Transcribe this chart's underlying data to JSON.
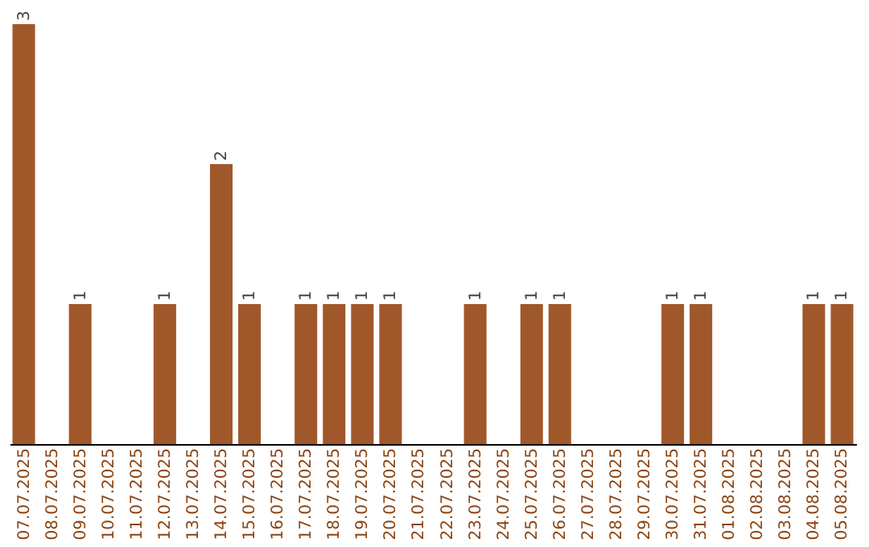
{
  "chart_data": {
    "type": "bar",
    "categories": [
      "07.07.2025",
      "08.07.2025",
      "09.07.2025",
      "10.07.2025",
      "11.07.2025",
      "12.07.2025",
      "13.07.2025",
      "14.07.2025",
      "15.07.2025",
      "16.07.2025",
      "17.07.2025",
      "18.07.2025",
      "19.07.2025",
      "20.07.2025",
      "21.07.2025",
      "22.07.2025",
      "23.07.2025",
      "24.07.2025",
      "25.07.2025",
      "26.07.2025",
      "27.07.2025",
      "28.07.2025",
      "29.07.2025",
      "30.07.2025",
      "31.07.2025",
      "01.08.2025",
      "02.08.2025",
      "03.08.2025",
      "04.08.2025",
      "05.08.2025"
    ],
    "values": [
      3,
      0,
      1,
      0,
      0,
      1,
      0,
      2,
      1,
      0,
      1,
      1,
      1,
      1,
      0,
      0,
      1,
      0,
      1,
      1,
      0,
      0,
      0,
      1,
      1,
      0,
      0,
      0,
      1,
      1
    ],
    "value_labels": [
      "3",
      null,
      "1",
      null,
      null,
      "1",
      null,
      "2",
      "1",
      null,
      "1",
      "1",
      "1",
      "1",
      null,
      null,
      "1",
      null,
      "1",
      "1",
      null,
      null,
      null,
      "1",
      "1",
      null,
      null,
      null,
      "1",
      "1"
    ],
    "color": "#a0582a",
    "grid": false
  }
}
